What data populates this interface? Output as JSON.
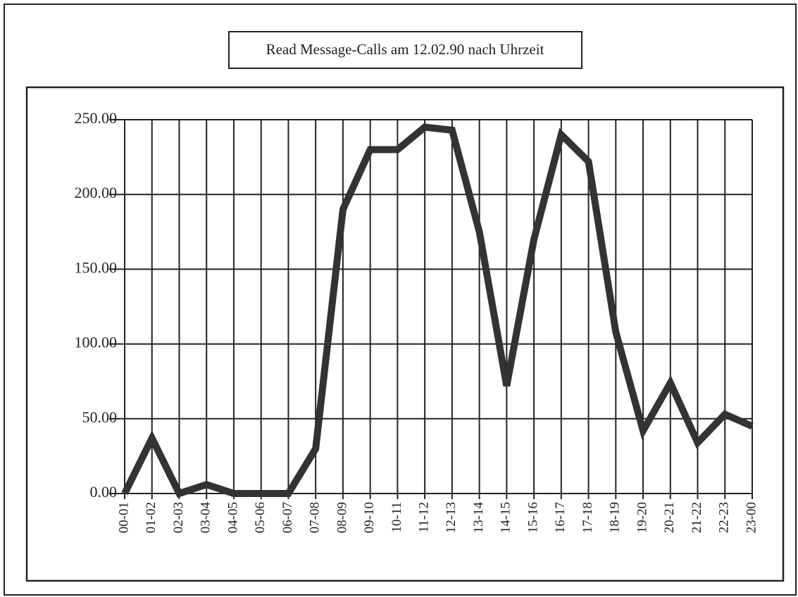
{
  "chart_data": {
    "type": "line",
    "title": "Read Message-Calls am 12.02.90 nach Uhrzeit",
    "categories": [
      "00-01",
      "01-02",
      "02-03",
      "03-04",
      "04-05",
      "05-06",
      "06-07",
      "07-08",
      "08-09",
      "09-10",
      "10-11",
      "11-12",
      "12-13",
      "13-14",
      "14-15",
      "15-16",
      "16-17",
      "17-18",
      "18-19",
      "19-20",
      "20-21",
      "21-22",
      "22-23",
      "23-00"
    ],
    "values": [
      0,
      37,
      0,
      6,
      0,
      0,
      0,
      30,
      190,
      230,
      230,
      245,
      243,
      175,
      72,
      170,
      240,
      222,
      108,
      42,
      74,
      34,
      53,
      45
    ],
    "color": "#333333",
    "ylim": [
      0,
      250
    ],
    "yticks": [
      {
        "value": 0,
        "label": "0.00"
      },
      {
        "value": 50,
        "label": "50.00"
      },
      {
        "value": 100,
        "label": "100.00"
      },
      {
        "value": 150,
        "label": "150.00"
      },
      {
        "value": 200,
        "label": "200.00"
      },
      {
        "value": 250,
        "label": "250.00"
      }
    ],
    "grid": true
  }
}
